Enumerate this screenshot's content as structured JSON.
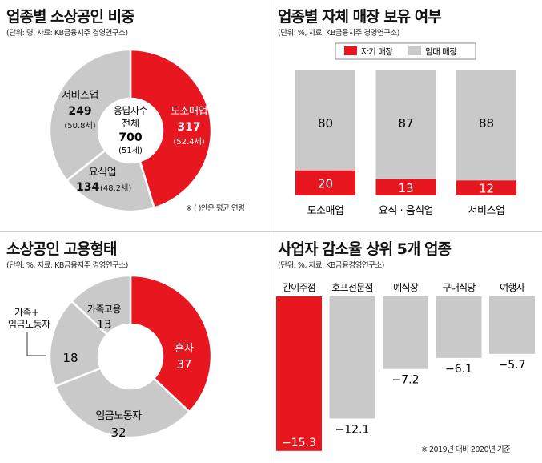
{
  "colors": {
    "red": "#e8171f",
    "gray": "#c9c9c9",
    "dark": "#111111"
  },
  "charts": [
    {
      "title": "업종별 소상공인 비중",
      "source": "(단위: 명, 자료: KB금융지주 경영연구소)",
      "center": {
        "line1": "응답자수",
        "line2": "전체",
        "value": "700",
        "age": "(51세)"
      },
      "note": "※ ( )안은 평균 연령"
    },
    {
      "title": "업종별 자체 매장 보유 여부",
      "source": "(단위: %, 자료: KB금융지주 경영연구소)"
    },
    {
      "title": "소상공인 고용형태",
      "source": "(단위: %, 자료: KB금융지주 경영연구소)"
    },
    {
      "title": "사업자 감소율 상위 5개 업종",
      "source": "(단위: %, 자료: KB금융경영연구소)",
      "note": "※ 2019년 대비 2020년 기준"
    }
  ],
  "chart_data": [
    {
      "type": "pie",
      "title": "업종별 소상공인 비중",
      "slices": [
        {
          "label": "도소매업",
          "value": 317,
          "age": "(52.4세)",
          "color": "#e8171f"
        },
        {
          "label": "요식업",
          "value": 134,
          "age": "(48.2세)",
          "color": "#c9c9c9"
        },
        {
          "label": "서비스업",
          "value": 249,
          "age": "(50.8세)",
          "color": "#c9c9c9"
        }
      ],
      "total": 700
    },
    {
      "type": "bar",
      "stacked": true,
      "title": "업종별 자체 매장 보유 여부",
      "categories": [
        "도소매업",
        "요식 · 음식업",
        "서비스업"
      ],
      "series": [
        {
          "name": "자기 매장",
          "values": [
            20,
            13,
            12
          ],
          "color": "#e8171f"
        },
        {
          "name": "임대 매장",
          "values": [
            80,
            87,
            88
          ],
          "color": "#c9c9c9"
        }
      ],
      "ylim": [
        0,
        100
      ]
    },
    {
      "type": "pie",
      "title": "소상공인 고용형태",
      "slices": [
        {
          "label": "혼자",
          "value": 37,
          "color": "#e8171f"
        },
        {
          "label": "임금노동자",
          "value": 32,
          "color": "#c9c9c9"
        },
        {
          "label": "가족+\n임금노동자",
          "value": 18,
          "color": "#c9c9c9"
        },
        {
          "label": "가족고용",
          "value": 13,
          "color": "#c9c9c9"
        }
      ]
    },
    {
      "type": "bar",
      "title": "사업자 감소율 상위 5개 업종",
      "categories": [
        "간이주점",
        "호프전문점",
        "예식장",
        "구내식당",
        "여행사"
      ],
      "values": [
        -15.3,
        -12.1,
        -7.2,
        -6.1,
        -5.7
      ],
      "value_labels": [
        "−15.3",
        "−12.1",
        "−7.2",
        "−6.1",
        "−5.7"
      ],
      "colors": [
        "#e8171f",
        "#c9c9c9",
        "#c9c9c9",
        "#c9c9c9",
        "#c9c9c9"
      ]
    }
  ]
}
